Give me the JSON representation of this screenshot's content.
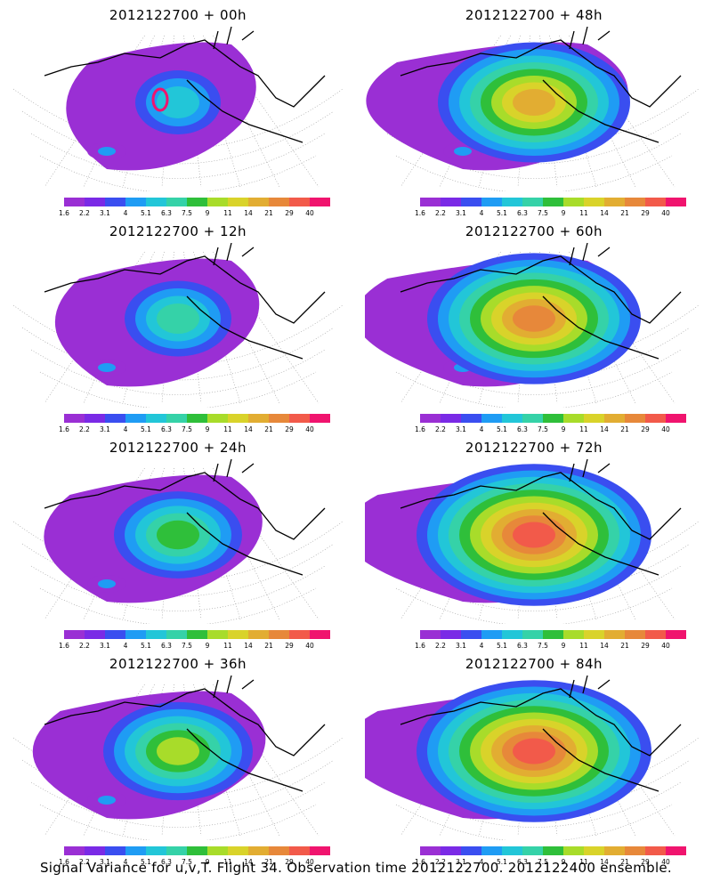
{
  "colorbar": {
    "labels": [
      "1.6",
      "2.2",
      "3.1",
      "4",
      "5.1",
      "6.3",
      "7.5",
      "9",
      "11",
      "14",
      "21",
      "29",
      "40"
    ],
    "colors": [
      "#9a2fd4",
      "#7a2ae6",
      "#3a4ef0",
      "#1f9cf4",
      "#22c6d8",
      "#35d2a8",
      "#2fbf3a",
      "#a8dc2a",
      "#d9d32a",
      "#e2ad32",
      "#e7883a",
      "#f25a4a",
      "#f0146e"
    ]
  },
  "panels": [
    {
      "title": "2012122700 + 00h"
    },
    {
      "title": "2012122700 + 48h"
    },
    {
      "title": "2012122700 + 12h"
    },
    {
      "title": "2012122700 + 60h"
    },
    {
      "title": "2012122700 + 24h"
    },
    {
      "title": "2012122700 + 72h"
    },
    {
      "title": "2012122700 + 36h"
    },
    {
      "title": "2012122700 + 84h"
    }
  ],
  "footer": "Signal Variance for u,v,T. Flight 34. Observation time 2012122700. 2012122400 ensemble."
}
